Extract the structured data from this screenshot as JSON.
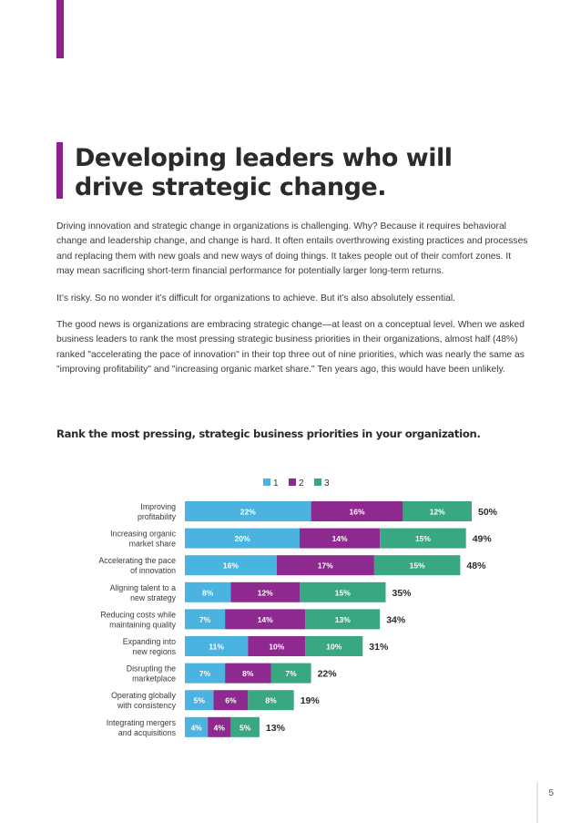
{
  "title_lines": [
    "Developing leaders who will",
    "drive strategic change."
  ],
  "paragraphs": [
    "Driving innovation and strategic change in organizations is challenging. Why? Because it requires behavioral change and leadership change, and change is hard. It often entails overthrowing existing practices and processes and replacing them with new goals and new ways of doing things. It takes people out of their comfort zones. It may mean sacrificing short-term financial performance for potentially larger long-term returns.",
    "It’s risky. So no wonder it’s difficult for organizations to achieve. But it’s also absolutely essential.",
    "The good news is organizations are embracing strategic change—at least on a conceptual level. When we asked business leaders to rank the most pressing strategic business priorities in their organizations, almost half (48%) ranked \"accelerating the pace of innovation\" in their top three out of nine priorities, which was nearly the same as \"improving profitability\" and \"increasing organic market share.\" Ten years ago, this would have been unlikely."
  ],
  "chart_heading": "Rank the most pressing, strategic business priorities in your organization.",
  "page_number": "5",
  "colors": {
    "accent": "#8e1f8e",
    "rank1": "#4bb3e0",
    "rank2": "#8e2a8f",
    "rank3": "#39a882"
  },
  "chart_data": {
    "type": "bar",
    "orientation": "horizontal",
    "stacked": true,
    "categories": [
      [
        "Improving",
        "profitability"
      ],
      [
        "Increasing organic",
        "market share"
      ],
      [
        "Accelerating the pace",
        "of innovation"
      ],
      [
        "Aligning talent to a",
        "new strategy"
      ],
      [
        "Reducing costs while",
        "maintaining quality"
      ],
      [
        "Expanding into",
        "new regions"
      ],
      [
        "Disrupting the",
        "marketplace"
      ],
      [
        "Operating globally",
        "with consistency"
      ],
      [
        "Integrating mergers",
        "and acquisitions"
      ]
    ],
    "series": [
      {
        "name": "1",
        "color": "#4bb3e0",
        "values": [
          22,
          20,
          16,
          8,
          7,
          11,
          7,
          5,
          4
        ]
      },
      {
        "name": "2",
        "color": "#8e2a8f",
        "values": [
          16,
          14,
          17,
          12,
          14,
          10,
          8,
          6,
          4
        ]
      },
      {
        "name": "3",
        "color": "#39a882",
        "values": [
          12,
          15,
          15,
          15,
          13,
          10,
          7,
          8,
          5
        ]
      }
    ],
    "totals": [
      "50%",
      "49%",
      "48%",
      "35%",
      "34%",
      "31%",
      "22%",
      "19%",
      "13%"
    ],
    "legend_position": "top-center",
    "grid": false
  }
}
